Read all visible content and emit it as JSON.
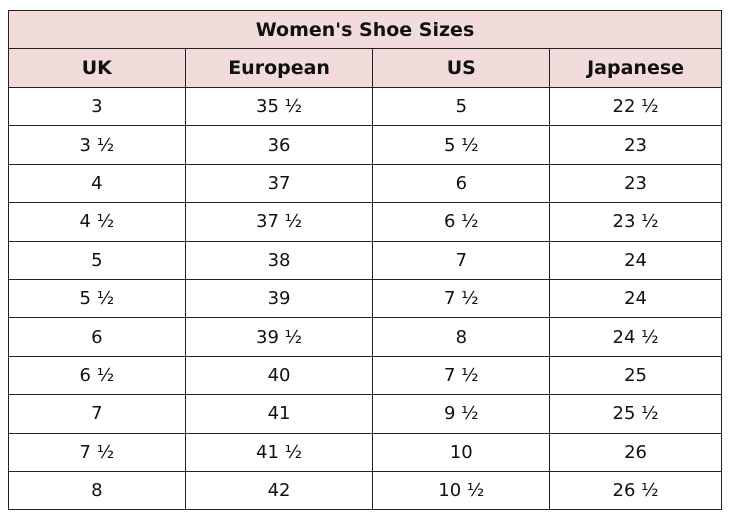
{
  "title": "Women's Shoe Sizes",
  "colors": {
    "header_background": "#f2dcdb",
    "border": "#222222"
  },
  "headers": [
    "UK",
    "European",
    "US",
    "Japanese"
  ],
  "rows": [
    [
      "3",
      "35 ½",
      "5",
      "22 ½"
    ],
    [
      "3 ½",
      "36",
      "5 ½",
      "23"
    ],
    [
      "4",
      "37",
      "6",
      "23"
    ],
    [
      "4 ½",
      "37 ½",
      "6 ½",
      "23 ½"
    ],
    [
      "5",
      "38",
      "7",
      "24"
    ],
    [
      "5 ½",
      "39",
      "7 ½",
      "24"
    ],
    [
      "6",
      "39 ½",
      "8",
      "24 ½"
    ],
    [
      "6 ½",
      "40",
      "7 ½",
      "25"
    ],
    [
      "7",
      "41",
      "9 ½",
      "25 ½"
    ],
    [
      "7 ½",
      "41 ½",
      "10",
      "26"
    ],
    [
      "8",
      "42",
      "10 ½",
      "26 ½"
    ]
  ]
}
